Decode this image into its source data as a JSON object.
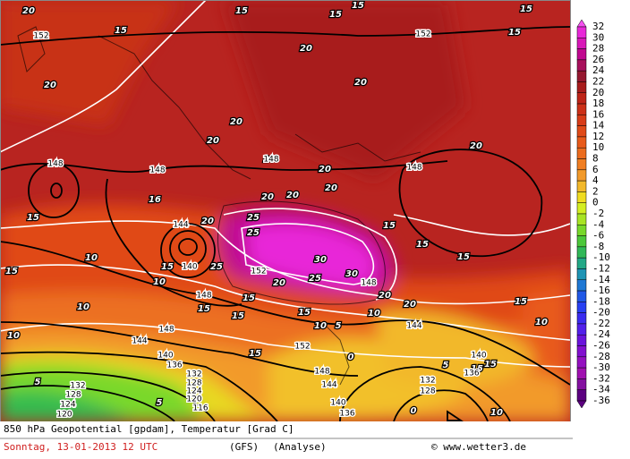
{
  "map": {
    "colorbar": {
      "labels": [
        32,
        30,
        28,
        26,
        24,
        22,
        20,
        18,
        16,
        14,
        12,
        10,
        8,
        6,
        4,
        2,
        0,
        -2,
        -4,
        -6,
        -8,
        -10,
        -12,
        -14,
        -16,
        -18,
        -20,
        -22,
        -24,
        -26,
        -28,
        -30,
        -32,
        -34,
        -36
      ],
      "colors": [
        "#f550f0",
        "#e828d8",
        "#d818b8",
        "#c00890",
        "#a8105c",
        "#961830",
        "#a81c1c",
        "#be2418",
        "#cc3018",
        "#d83c18",
        "#e04a18",
        "#e85a1a",
        "#ec6c1e",
        "#f07e22",
        "#f29a2a",
        "#f2b82a",
        "#f0dc20",
        "#d4ee22",
        "#a8e424",
        "#78d82a",
        "#4cc83a",
        "#30b858",
        "#22a886",
        "#1e94b4",
        "#1e78d4",
        "#2058e6",
        "#2840f2",
        "#3a2cf0",
        "#5220ea",
        "#6a14dc",
        "#8210d0",
        "#9410c0",
        "#a010b0",
        "#8410a0",
        "#5c0080"
      ]
    },
    "contour_labels": {
      "temperature": [
        20,
        15,
        15,
        15,
        15,
        15,
        15,
        20,
        20,
        20,
        20,
        20,
        20,
        20,
        20,
        20,
        20,
        20,
        16,
        15,
        25,
        25,
        20,
        15,
        15,
        15,
        30,
        30,
        25,
        20,
        20,
        20,
        15,
        15,
        15,
        15,
        10,
        10,
        10,
        10,
        15,
        15,
        25,
        10,
        15,
        15,
        10,
        5,
        0,
        10,
        5,
        15,
        15,
        5,
        5,
        0,
        10
      ],
      "geopotential": [
        152,
        152,
        148,
        148,
        148,
        148,
        144,
        140,
        148,
        152,
        148,
        144,
        148,
        144,
        152,
        140,
        136,
        132,
        128,
        124,
        120,
        116,
        132,
        128,
        124,
        120,
        148,
        144,
        140,
        136,
        140,
        136,
        132,
        128
      ]
    },
    "footer": {
      "title": "850 hPa Geopotential [gpdam], Temperatur [Grad C]",
      "date": "Sonntag, 13-01-2013  12 UTC",
      "model": "(GFS)",
      "run": "(Analyse)",
      "source": "© www.wetter3.de"
    }
  }
}
